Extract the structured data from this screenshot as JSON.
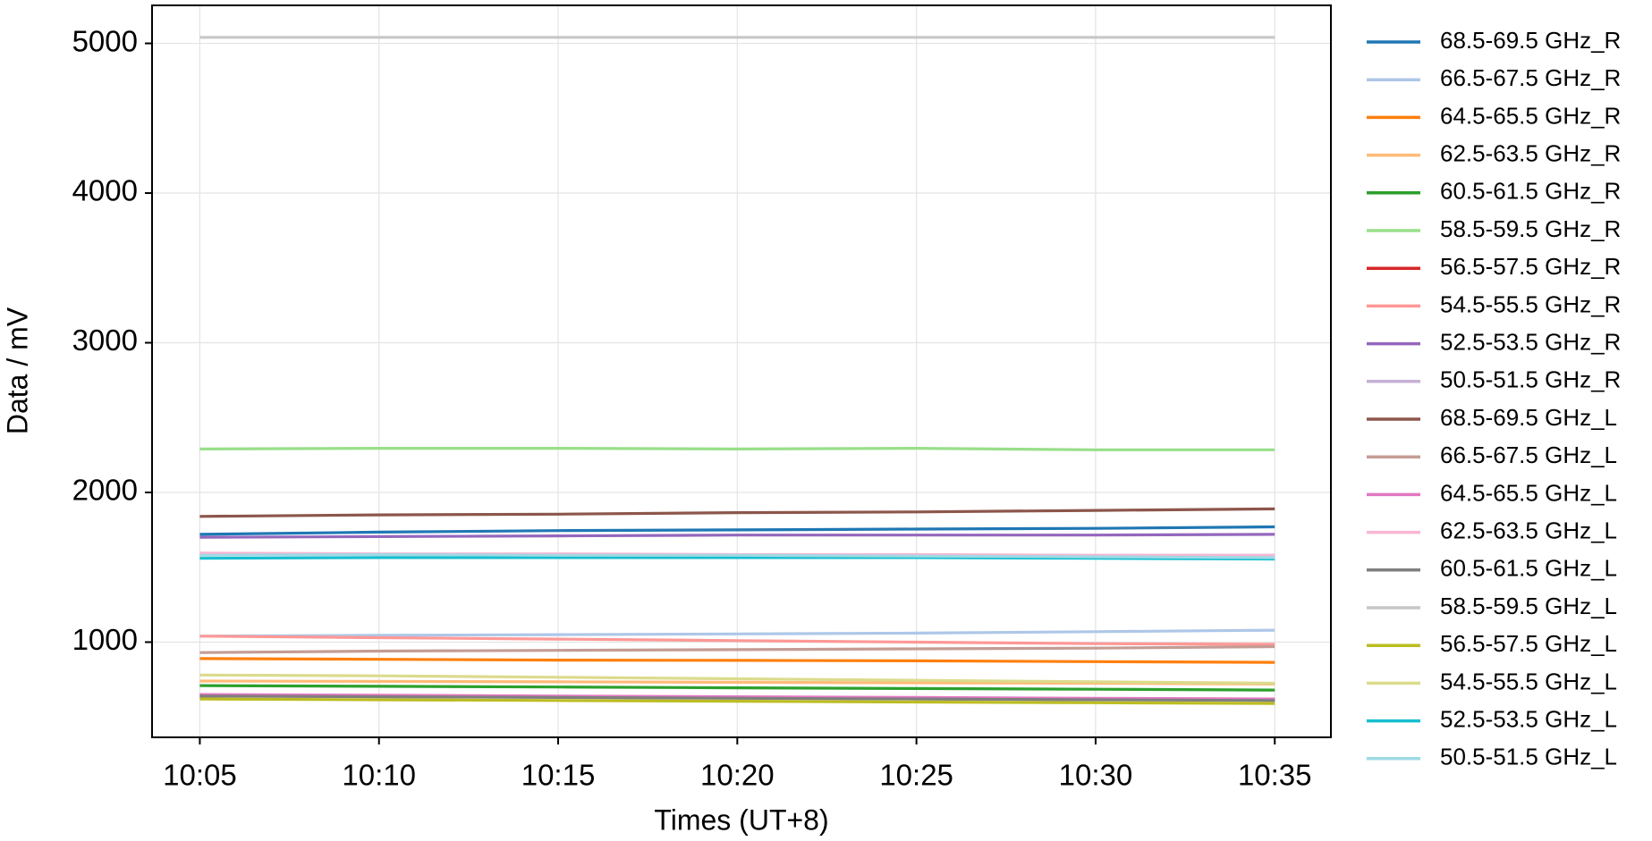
{
  "chart_data": {
    "type": "line",
    "x_label": "Times (UT+8)",
    "y_label": "Data / mV",
    "x": [
      "10:05",
      "10:10",
      "10:15",
      "10:20",
      "10:25",
      "10:30",
      "10:35"
    ],
    "xlim": [
      "10:03:40",
      "10:36:34"
    ],
    "xticks": [
      "10:05",
      "10:10",
      "10:15",
      "10:20",
      "10:25",
      "10:30",
      "10:35"
    ],
    "ylim": [
      364,
      5254
    ],
    "yticks": [
      1000,
      2000,
      3000,
      4000,
      5000
    ],
    "grid": true,
    "legend": "outside-right",
    "series": [
      {
        "name": "68.5-69.5 GHz_R",
        "color": "#1f77b4",
        "values": [
          1720,
          1735,
          1745,
          1750,
          1755,
          1760,
          1770
        ]
      },
      {
        "name": "66.5-67.5 GHz_R",
        "color": "#aec7e8",
        "values": [
          1040,
          1045,
          1050,
          1055,
          1060,
          1070,
          1080
        ]
      },
      {
        "name": "64.5-65.5 GHz_R",
        "color": "#ff7f0e",
        "values": [
          890,
          885,
          880,
          878,
          875,
          870,
          865
        ]
      },
      {
        "name": "62.5-63.5 GHz_R",
        "color": "#ffbb78",
        "values": [
          740,
          738,
          735,
          732,
          728,
          725,
          720
        ]
      },
      {
        "name": "60.5-61.5 GHz_R",
        "color": "#2ca02c",
        "values": [
          710,
          705,
          700,
          695,
          690,
          685,
          680
        ]
      },
      {
        "name": "58.5-59.5 GHz_R",
        "color": "#98df8a",
        "values": [
          2290,
          2295,
          2295,
          2290,
          2295,
          2285,
          2285
        ]
      },
      {
        "name": "56.5-57.5 GHz_R",
        "color": "#d62728",
        "values": [
          640,
          637,
          633,
          630,
          626,
          622,
          618
        ]
      },
      {
        "name": "54.5-55.5 GHz_R",
        "color": "#ff9896",
        "values": [
          1040,
          1030,
          1020,
          1010,
          1000,
          990,
          985
        ]
      },
      {
        "name": "52.5-53.5 GHz_R",
        "color": "#9467bd",
        "values": [
          1700,
          1705,
          1710,
          1715,
          1715,
          1715,
          1720
        ]
      },
      {
        "name": "50.5-51.5 GHz_R",
        "color": "#c5b0d5",
        "values": [
          1590,
          1585,
          1585,
          1580,
          1580,
          1580,
          1580
        ]
      },
      {
        "name": "68.5-69.5 GHz_L",
        "color": "#8c564b",
        "values": [
          1840,
          1850,
          1855,
          1865,
          1870,
          1880,
          1890
        ]
      },
      {
        "name": "66.5-67.5 GHz_L",
        "color": "#c49c94",
        "values": [
          930,
          940,
          945,
          950,
          955,
          960,
          970
        ]
      },
      {
        "name": "64.5-65.5 GHz_L",
        "color": "#e377c2",
        "values": [
          650,
          645,
          640,
          635,
          630,
          625,
          620
        ]
      },
      {
        "name": "62.5-63.5 GHz_L",
        "color": "#f7b6d2",
        "values": [
          1595,
          1590,
          1590,
          1585,
          1585,
          1580,
          1580
        ]
      },
      {
        "name": "60.5-61.5 GHz_L",
        "color": "#7f7f7f",
        "values": [
          640,
          635,
          630,
          625,
          620,
          615,
          610
        ]
      },
      {
        "name": "58.5-59.5 GHz_L",
        "color": "#c7c7c7",
        "values": [
          5040,
          5040,
          5040,
          5040,
          5040,
          5040,
          5040
        ]
      },
      {
        "name": "56.5-57.5 GHz_L",
        "color": "#bcbd22",
        "values": [
          620,
          615,
          610,
          605,
          600,
          595,
          590
        ]
      },
      {
        "name": "54.5-55.5 GHz_L",
        "color": "#dbdb8d",
        "values": [
          780,
          775,
          765,
          755,
          745,
          735,
          725
        ]
      },
      {
        "name": "52.5-53.5 GHz_L",
        "color": "#17becf",
        "values": [
          1560,
          1565,
          1565,
          1565,
          1565,
          1560,
          1555
        ]
      },
      {
        "name": "50.5-51.5 GHz_L",
        "color": "#9edae5",
        "values": [
          1580,
          1585,
          1580,
          1580,
          1575,
          1570,
          1565
        ]
      }
    ]
  }
}
